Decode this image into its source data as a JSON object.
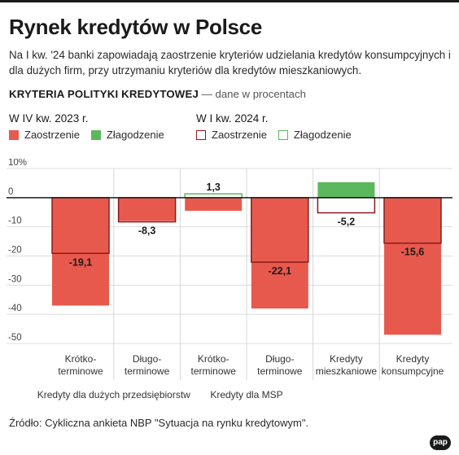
{
  "title": "Rynek kredytów w Polsce",
  "subtitle": "Na I kw. '24 banki zapowiadają zaostrzenie kryteriów udzielania kredytów konsumpcyjnych i dla dużych firm, przy utrzymaniu kryteriów dla kredytów mieszkaniowych.",
  "criteria_heading": "KRYTERIA POLITYKI KREDYTOWEJ",
  "criteria_note": " — dane w procentach",
  "source": "Źródło: Cykliczna ankieta NBP \"Sytuacja na rynku kredytowym\".",
  "logo": "pap",
  "colors": {
    "tightening": "#e8594d",
    "easing": "#5cb85c",
    "outline_tightening": "#8b1a1a",
    "outline_easing": "#5cb85c"
  },
  "legend": {
    "filled": {
      "period": "W IV kw. 2023 r.",
      "tightening": "Zaostrzenie",
      "easing": "Złagodzenie"
    },
    "outline": {
      "period": "W I kw. 2024 r.",
      "tightening": "Zaostrzenie",
      "easing": "Złagodzenie"
    }
  },
  "chart_data": {
    "type": "bar",
    "ylim": [
      -50,
      10
    ],
    "yticks": [
      10,
      0,
      -10,
      -20,
      -30,
      -40,
      -50
    ],
    "ytick_labels": [
      "10%",
      "0",
      "-10",
      "-20",
      "-30",
      "-40",
      "-50"
    ],
    "categories": [
      "Krótko-\nterminowe",
      "Długo-\nterminowe",
      "Krótko-\nterminowe",
      "Długo-\nterminowe",
      "Kredyty\nmieszkaniowe",
      "Kredyty\nkonsumpcyjne"
    ],
    "groups": [
      {
        "label": "Kredyty dla dużych przedsiębiorstw",
        "categories": [
          0,
          1
        ]
      },
      {
        "label": "Kredyty dla MSP",
        "categories": [
          2,
          3
        ]
      }
    ],
    "series": [
      {
        "name": "W IV kw. 2023 r.",
        "values": [
          -37,
          -8,
          -4.5,
          -38,
          5.3,
          -47
        ]
      },
      {
        "name": "W I kw. 2024 r.",
        "values": [
          -19.1,
          -8.3,
          1.3,
          -22.1,
          -5.2,
          -15.6
        ]
      }
    ],
    "data_labels": [
      "-19,1",
      "-8,3",
      "1,3",
      "-22,1",
      "-5,2",
      "-15,6"
    ]
  }
}
